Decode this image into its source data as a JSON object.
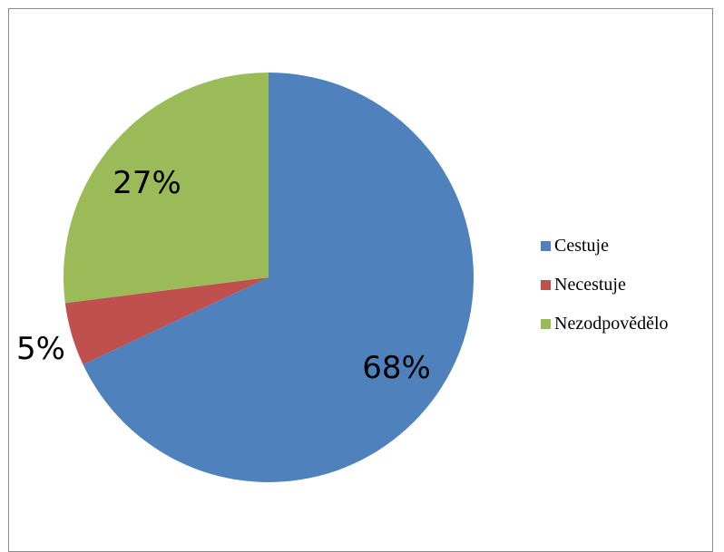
{
  "chart_data": {
    "type": "pie",
    "categories": [
      "Cestuje",
      "Necestuje",
      "Nezodpovědělo"
    ],
    "values": [
      68,
      5,
      27
    ],
    "labels": [
      "68%",
      "5%",
      "27%"
    ],
    "colors": [
      "#4f81bd",
      "#c0504d",
      "#9bbb59"
    ],
    "legend_position": "right"
  }
}
